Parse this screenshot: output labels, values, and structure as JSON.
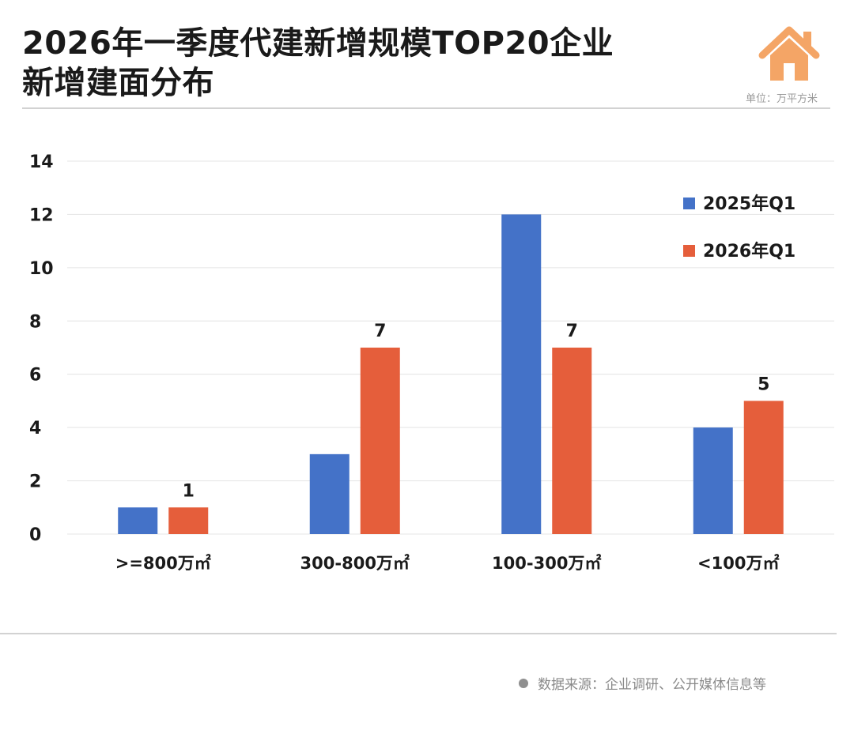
{
  "header": {
    "title_line1": "2026年一季度代建新增规模TOP20企业",
    "title_line2": "新增建面分布",
    "unit": "单位：万平方米",
    "logo": "house-icon"
  },
  "footer": {
    "source": "数据来源：企业调研、公开媒体信息等"
  },
  "colors": {
    "series_2025": "#4472c8",
    "series_2026": "#e55e3b",
    "logo": "#f4a566",
    "grid": "#e4e4e4"
  },
  "chart_data": {
    "type": "bar",
    "title": "2026年一季度代建新增规模TOP20企业新增建面分布",
    "xlabel": "",
    "ylabel": "",
    "ylim": [
      0,
      14
    ],
    "yticks": [
      0,
      2,
      4,
      6,
      8,
      10,
      12,
      14
    ],
    "grid": true,
    "legend_position": "top-right",
    "categories": [
      ">=800万㎡",
      "300-800万㎡",
      "100-300万㎡",
      "<100万㎡"
    ],
    "series": [
      {
        "name": "2025年Q1",
        "values": [
          1,
          3,
          12,
          4
        ],
        "color": "#4472c8",
        "labeled": false
      },
      {
        "name": "2026年Q1",
        "values": [
          1,
          7,
          7,
          5
        ],
        "color": "#e55e3b",
        "labeled": true
      }
    ]
  }
}
